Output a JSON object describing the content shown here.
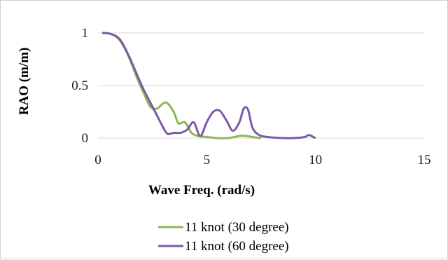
{
  "chart_data": {
    "type": "line",
    "xlabel": "Wave Freq. (rad/s)",
    "ylabel": "RAO (m/m)",
    "xlim": [
      0,
      15
    ],
    "ylim": [
      0,
      1
    ],
    "x_ticks": [
      "0",
      "5",
      "10",
      "15"
    ],
    "y_ticks": [
      "0",
      "0.5",
      "1"
    ],
    "grid": "horizontal",
    "legend_position": "bottom",
    "series": [
      {
        "name": "11 knot (30 degree)",
        "color": "#8db851",
        "points": [
          [
            0.2,
            1.0
          ],
          [
            0.6,
            0.99
          ],
          [
            1.0,
            0.93
          ],
          [
            1.4,
            0.78
          ],
          [
            1.8,
            0.57
          ],
          [
            2.1,
            0.43
          ],
          [
            2.4,
            0.3
          ],
          [
            2.7,
            0.28
          ],
          [
            3.0,
            0.33
          ],
          [
            3.2,
            0.33
          ],
          [
            3.5,
            0.24
          ],
          [
            3.7,
            0.14
          ],
          [
            4.0,
            0.15
          ],
          [
            4.3,
            0.05
          ],
          [
            4.6,
            0.02
          ],
          [
            5.0,
            0.01
          ],
          [
            5.5,
            0.0
          ],
          [
            6.0,
            0.0
          ],
          [
            6.5,
            0.02
          ],
          [
            6.8,
            0.02
          ],
          [
            7.1,
            0.01
          ],
          [
            7.5,
            0.0
          ]
        ]
      },
      {
        "name": "11 knot (60 degree)",
        "color": "#7d5aa6",
        "points": [
          [
            0.2,
            1.0
          ],
          [
            0.6,
            0.99
          ],
          [
            1.0,
            0.94
          ],
          [
            1.4,
            0.79
          ],
          [
            1.8,
            0.6
          ],
          [
            2.1,
            0.46
          ],
          [
            2.4,
            0.34
          ],
          [
            2.7,
            0.22
          ],
          [
            3.0,
            0.1
          ],
          [
            3.2,
            0.04
          ],
          [
            3.5,
            0.05
          ],
          [
            3.8,
            0.05
          ],
          [
            4.1,
            0.08
          ],
          [
            4.4,
            0.15
          ],
          [
            4.7,
            0.02
          ],
          [
            5.0,
            0.15
          ],
          [
            5.3,
            0.25
          ],
          [
            5.6,
            0.26
          ],
          [
            5.9,
            0.17
          ],
          [
            6.2,
            0.07
          ],
          [
            6.5,
            0.15
          ],
          [
            6.7,
            0.28
          ],
          [
            6.9,
            0.27
          ],
          [
            7.1,
            0.1
          ],
          [
            7.4,
            0.03
          ],
          [
            7.8,
            0.01
          ],
          [
            8.5,
            0.0
          ],
          [
            9.0,
            0.0
          ],
          [
            9.5,
            0.01
          ],
          [
            9.7,
            0.03
          ],
          [
            9.9,
            0.01
          ],
          [
            10.0,
            0.0
          ]
        ]
      }
    ]
  }
}
